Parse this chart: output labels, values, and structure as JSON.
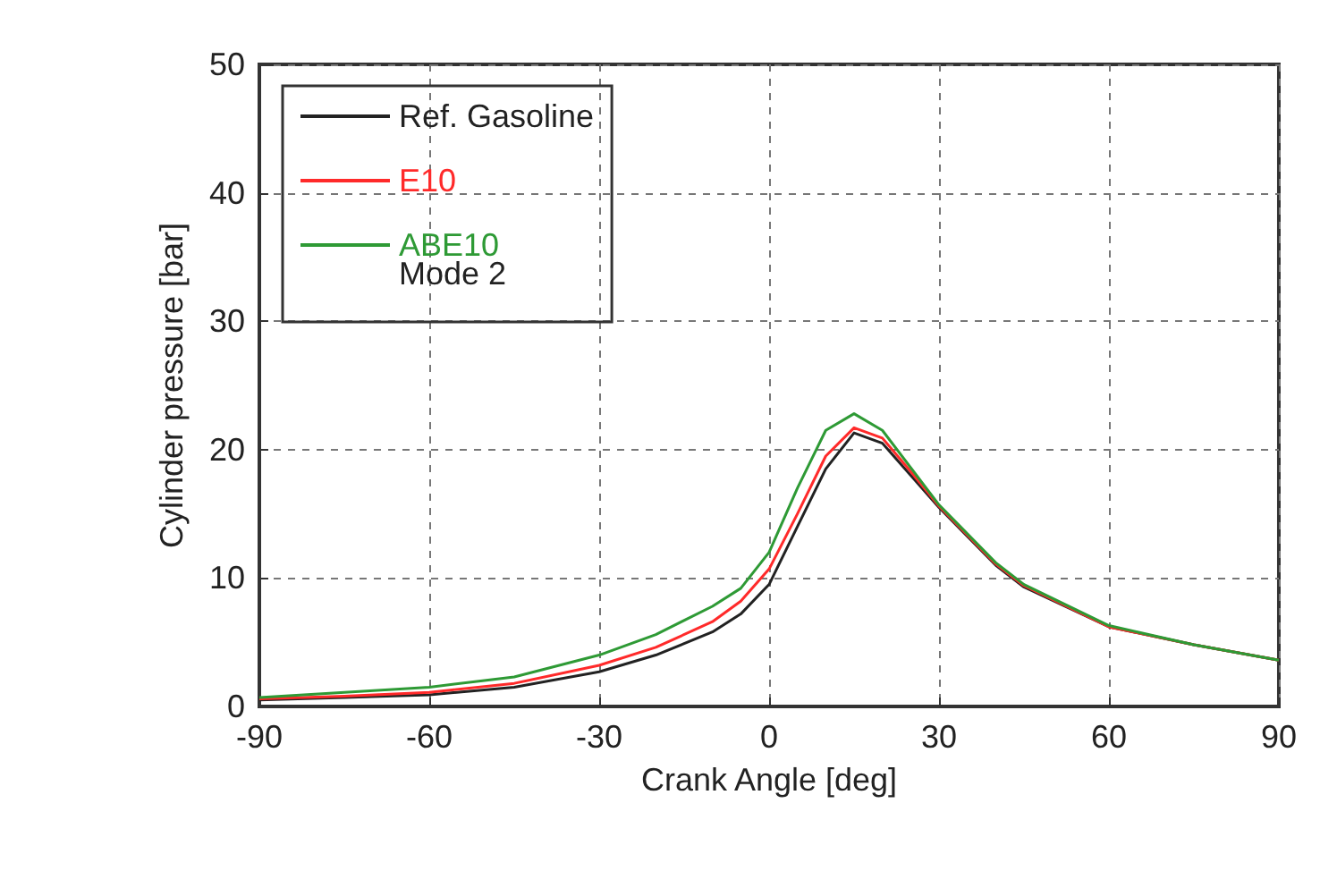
{
  "chart_data": {
    "type": "line",
    "xlabel": "Crank Angle [deg]",
    "ylabel": "Cylinder pressure [bar]",
    "legend_title": "Mode 2",
    "x": [
      -90,
      -75,
      -60,
      -45,
      -30,
      -20,
      -10,
      -5,
      0,
      5,
      10,
      15,
      20,
      25,
      30,
      40,
      45,
      60,
      75,
      90
    ],
    "series": [
      {
        "name": "Ref. Gasoline",
        "color": "#222222",
        "values": [
          0.5,
          0.7,
          0.9,
          1.5,
          2.7,
          4,
          5.8,
          7.2,
          9.5,
          14,
          18.5,
          21.3,
          20.5,
          18,
          15.5,
          11,
          9.3,
          6.2,
          4.8,
          3.6
        ]
      },
      {
        "name": "E10",
        "color": "#ff2a2a",
        "values": [
          0.6,
          0.8,
          1.1,
          1.8,
          3.2,
          4.6,
          6.6,
          8.2,
          10.7,
          15,
          19.5,
          21.7,
          20.9,
          18.3,
          15.6,
          11.1,
          9.4,
          6.2,
          4.8,
          3.6
        ]
      },
      {
        "name": "ABE10",
        "color": "#2e9a35",
        "values": [
          0.7,
          1.1,
          1.5,
          2.3,
          4,
          5.6,
          7.8,
          9.2,
          12,
          17,
          21.5,
          22.8,
          21.5,
          18.6,
          15.7,
          11.2,
          9.5,
          6.3,
          4.8,
          3.6
        ]
      }
    ],
    "xlim": [
      -90,
      90
    ],
    "xticks": [
      -90,
      -60,
      -30,
      0,
      30,
      60,
      90
    ],
    "ylim": [
      0,
      50
    ],
    "yticks": [
      0,
      10,
      20,
      30,
      40,
      50
    ],
    "grid": true,
    "legend": "top left",
    "marker": "none",
    "line_style": "solid"
  }
}
